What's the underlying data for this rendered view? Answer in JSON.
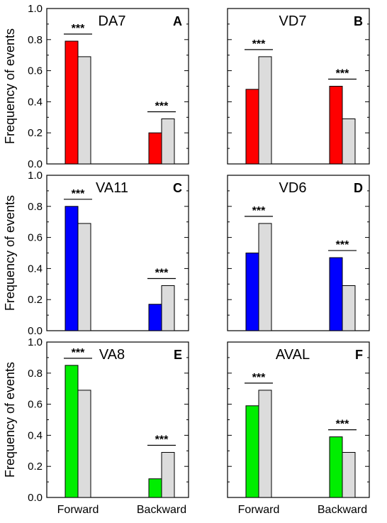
{
  "figure": {
    "ylabel": "Frequency of events",
    "categories": [
      "Forward",
      "Backward"
    ],
    "significance": "***",
    "colors": {
      "red": "#ff0000",
      "blue": "#0000ff",
      "green": "#00ee00",
      "control": "#dcdcdc"
    }
  },
  "chart_data": [
    {
      "type": "bar",
      "letter": "A",
      "title": "DA7",
      "categories": [
        "Forward",
        "Backward"
      ],
      "color": "#ff0000",
      "series": [
        {
          "values": [
            0.79,
            0.2
          ]
        },
        {
          "values": [
            0.69,
            0.29
          ]
        }
      ],
      "ylim": [
        0,
        1.0
      ],
      "yticks": [
        "0.0",
        "0.2",
        "0.4",
        "0.6",
        "0.8",
        "1.0"
      ],
      "ylabel": "Frequency of events",
      "annotations": [
        "***",
        "***"
      ]
    },
    {
      "type": "bar",
      "letter": "B",
      "title": "VD7",
      "categories": [
        "Forward",
        "Backward"
      ],
      "color": "#ff0000",
      "series": [
        {
          "values": [
            0.48,
            0.5
          ]
        },
        {
          "values": [
            0.69,
            0.29
          ]
        }
      ],
      "ylim": [
        0,
        1.0
      ],
      "yticks": [],
      "ylabel": "",
      "annotations": [
        "***",
        "***"
      ]
    },
    {
      "type": "bar",
      "letter": "C",
      "title": "VA11",
      "categories": [
        "Forward",
        "Backward"
      ],
      "color": "#0000ff",
      "series": [
        {
          "values": [
            0.8,
            0.17
          ]
        },
        {
          "values": [
            0.69,
            0.29
          ]
        }
      ],
      "ylim": [
        0,
        1.0
      ],
      "yticks": [
        "0.0",
        "0.2",
        "0.4",
        "0.6",
        "0.8",
        "1.0"
      ],
      "ylabel": "Frequency of events",
      "annotations": [
        "***",
        "***"
      ]
    },
    {
      "type": "bar",
      "letter": "D",
      "title": "VD6",
      "categories": [
        "Forward",
        "Backward"
      ],
      "color": "#0000ff",
      "series": [
        {
          "values": [
            0.5,
            0.47
          ]
        },
        {
          "values": [
            0.69,
            0.29
          ]
        }
      ],
      "ylim": [
        0,
        1.0
      ],
      "yticks": [],
      "ylabel": "",
      "annotations": [
        "***",
        "***"
      ]
    },
    {
      "type": "bar",
      "letter": "E",
      "title": "VA8",
      "categories": [
        "Forward",
        "Backward"
      ],
      "color": "#00ee00",
      "series": [
        {
          "values": [
            0.85,
            0.12
          ]
        },
        {
          "values": [
            0.69,
            0.29
          ]
        }
      ],
      "ylim": [
        0,
        1.0
      ],
      "yticks": [
        "0.0",
        "0.2",
        "0.4",
        "0.6",
        "0.8",
        "1.0"
      ],
      "ylabel": "Frequency of events",
      "annotations": [
        "***",
        "***"
      ]
    },
    {
      "type": "bar",
      "letter": "F",
      "title": "AVAL",
      "categories": [
        "Forward",
        "Backward"
      ],
      "color": "#00ee00",
      "series": [
        {
          "values": [
            0.59,
            0.39
          ]
        },
        {
          "values": [
            0.69,
            0.29
          ]
        }
      ],
      "ylim": [
        0,
        1.0
      ],
      "yticks": [],
      "ylabel": "",
      "annotations": [
        "***",
        "***"
      ]
    }
  ]
}
